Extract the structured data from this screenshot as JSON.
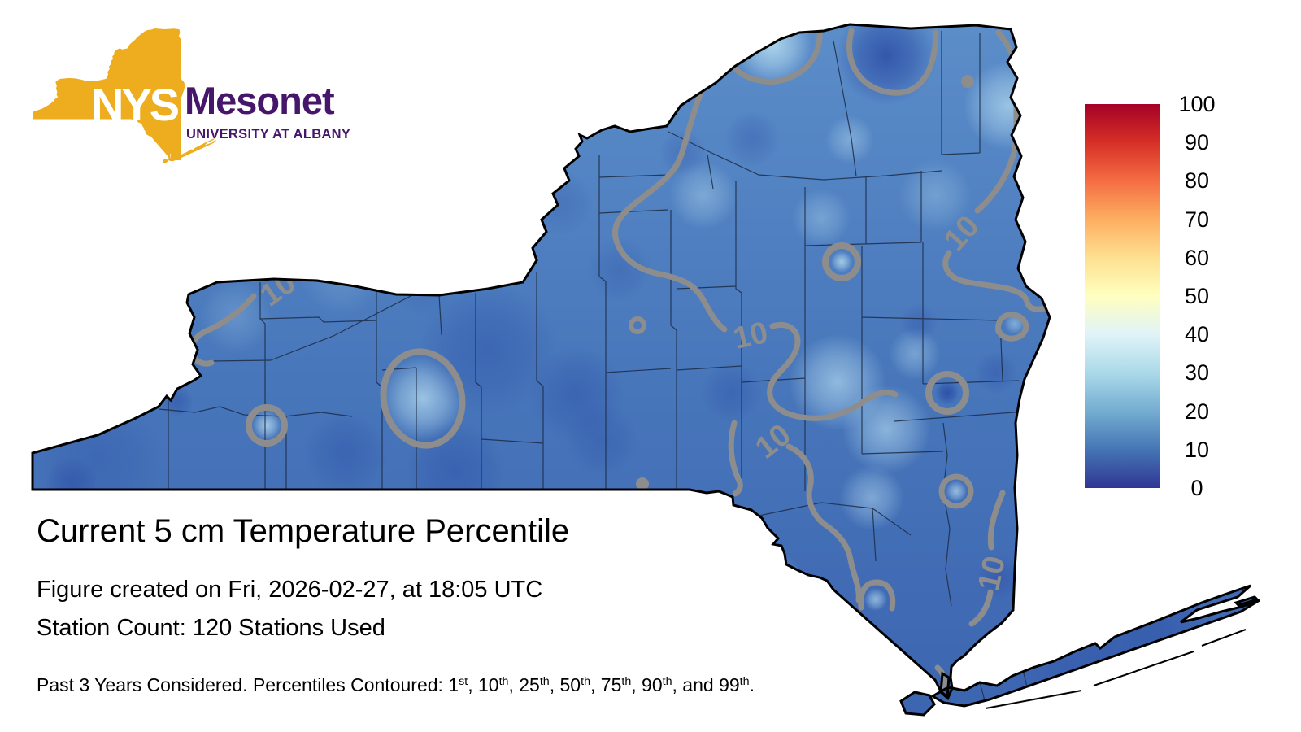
{
  "logo": {
    "acronym": "NYS",
    "name": "Mesonet",
    "institution": "UNIVERSITY AT ALBANY",
    "colors": {
      "gold": "#EEAD1E",
      "purple": "#46166B",
      "text_on_gold": "#ffffff"
    }
  },
  "heading": {
    "title": "Current 5 cm Temperature Percentile",
    "created_line": "Figure created on Fri, 2026-02-27, at 18:05 UTC",
    "station_line": "Station Count: 120 Stations Used"
  },
  "footnote": {
    "segments": [
      {
        "t": "Past 3 Years Considered. Percentiles Contoured: 1"
      },
      {
        "t": "st",
        "sup": true
      },
      {
        "t": ", 10"
      },
      {
        "t": "th",
        "sup": true
      },
      {
        "t": ", 25"
      },
      {
        "t": "th",
        "sup": true
      },
      {
        "t": ", 50"
      },
      {
        "t": "th",
        "sup": true
      },
      {
        "t": ", 75"
      },
      {
        "t": "th",
        "sup": true
      },
      {
        "t": ", 90"
      },
      {
        "t": "th",
        "sup": true
      },
      {
        "t": ", and 99"
      },
      {
        "t": "th",
        "sup": true
      },
      {
        "t": "."
      }
    ]
  },
  "colorbar": {
    "ticks": [
      "100",
      "90",
      "80",
      "70",
      "60",
      "50",
      "40",
      "30",
      "20",
      "10",
      "0"
    ],
    "gradient_bottom_to_top": [
      "#313695",
      "#4575b4",
      "#74add1",
      "#abd9e9",
      "#e0f3f8",
      "#ffffbf",
      "#fee090",
      "#fdae61",
      "#f46d43",
      "#d73027",
      "#a50026"
    ]
  },
  "map": {
    "region": "New York State",
    "contour_label": "10",
    "contour_color": "#8d8d8d",
    "county_line_color": "#1c2b45",
    "outline_color": "#000000"
  },
  "chart_data": {
    "type": "heatmap",
    "title": "Current 5 cm Temperature Percentile",
    "colorbar_ticks": [
      100,
      90,
      80,
      70,
      60,
      50,
      40,
      30,
      20,
      10,
      0
    ],
    "colorbar_range": [
      0,
      100
    ],
    "contour_levels_visible": [
      10
    ],
    "contoured_percentiles": [
      1,
      10,
      25,
      50,
      75,
      90,
      99
    ],
    "stations_used": 120,
    "created": "Fri, 2026-02-27, at 18:05 UTC",
    "value_summary": "Statewide 5 cm soil temperature percentiles mostly between 0 and 30 (blues), with 10th-percentile contours winding across the state"
  }
}
